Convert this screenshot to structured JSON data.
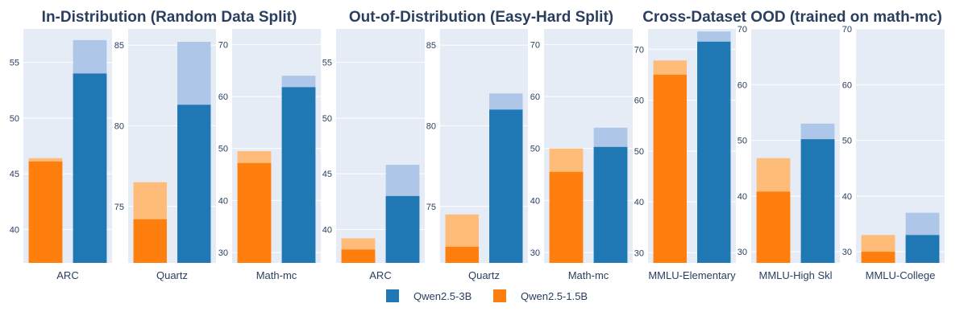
{
  "colors": {
    "qwen3b": "#1f77b4",
    "qwen3b_light": "#aec7e8",
    "qwen15b": "#ff7f0e",
    "qwen15b_light": "#ffbb78",
    "panel_bg": "#e5ecf6",
    "grid": "#ffffff"
  },
  "group_titles": [
    "In-Distribution (Random Data Split)",
    "Out-of-Distribution (Easy-Hard Split)",
    "Cross-Dataset OOD (trained on math-mc)"
  ],
  "legend": {
    "items": [
      {
        "name": "Qwen2.5-3B",
        "color": "#1f77b4"
      },
      {
        "name": "Qwen2.5-1.5B",
        "color": "#ff7f0e"
      }
    ]
  },
  "chart_data": [
    {
      "type": "bar",
      "group": "In-Distribution (Random Data Split)",
      "category": "ARC",
      "ylim": [
        37,
        58
      ],
      "ticks": [
        40,
        45,
        50,
        55
      ],
      "series": [
        {
          "name": "Qwen2.5-1.5B",
          "base": 46.1,
          "improved": 46.4
        },
        {
          "name": "Qwen2.5-3B",
          "base": 54.0,
          "improved": 57.0
        }
      ]
    },
    {
      "type": "bar",
      "group": "In-Distribution (Random Data Split)",
      "category": "Quartz",
      "ylim": [
        71.5,
        86
      ],
      "ticks": [
        75,
        80,
        85
      ],
      "series": [
        {
          "name": "Qwen2.5-1.5B",
          "base": 74.2,
          "improved": 76.5
        },
        {
          "name": "Qwen2.5-3B",
          "base": 81.3,
          "improved": 85.2
        }
      ]
    },
    {
      "type": "bar",
      "group": "In-Distribution (Random Data Split)",
      "category": "Math-mc",
      "ylim": [
        28,
        73
      ],
      "ticks": [
        30,
        40,
        50,
        60,
        70
      ],
      "series": [
        {
          "name": "Qwen2.5-1.5B",
          "base": 47.2,
          "improved": 49.5
        },
        {
          "name": "Qwen2.5-3B",
          "base": 61.8,
          "improved": 64.0
        }
      ]
    },
    {
      "type": "bar",
      "group": "Out-of-Distribution (Easy-Hard Split)",
      "category": "ARC",
      "ylim": [
        37,
        58
      ],
      "ticks": [
        40,
        45,
        50,
        55
      ],
      "series": [
        {
          "name": "Qwen2.5-1.5B",
          "base": 38.2,
          "improved": 39.2
        },
        {
          "name": "Qwen2.5-3B",
          "base": 43.0,
          "improved": 45.8
        }
      ]
    },
    {
      "type": "bar",
      "group": "Out-of-Distribution (Easy-Hard Split)",
      "category": "Quartz",
      "ylim": [
        71.5,
        86
      ],
      "ticks": [
        75,
        80,
        85
      ],
      "series": [
        {
          "name": "Qwen2.5-1.5B",
          "base": 72.5,
          "improved": 74.5
        },
        {
          "name": "Qwen2.5-3B",
          "base": 81.0,
          "improved": 82.0
        }
      ]
    },
    {
      "type": "bar",
      "group": "Out-of-Distribution (Easy-Hard Split)",
      "category": "Math-mc",
      "ylim": [
        28,
        73
      ],
      "ticks": [
        30,
        40,
        50,
        60,
        70
      ],
      "series": [
        {
          "name": "Qwen2.5-1.5B",
          "base": 45.5,
          "improved": 50.0
        },
        {
          "name": "Qwen2.5-3B",
          "base": 50.3,
          "improved": 54.0
        }
      ]
    },
    {
      "type": "bar",
      "group": "Cross-Dataset OOD (trained on math-mc)",
      "category": "MMLU-Elementary",
      "ylim": [
        28,
        74
      ],
      "ticks": [
        30,
        40,
        50,
        60,
        70
      ],
      "series": [
        {
          "name": "Qwen2.5-1.5B",
          "base": 65.0,
          "improved": 67.8
        },
        {
          "name": "Qwen2.5-3B",
          "base": 71.5,
          "improved": 73.5
        }
      ]
    },
    {
      "type": "bar",
      "group": "Cross-Dataset OOD (trained on math-mc)",
      "category": "MMLU-High Skl",
      "ylim": [
        28,
        70
      ],
      "ticks": [
        30,
        40,
        50,
        60,
        70
      ],
      "series": [
        {
          "name": "Qwen2.5-1.5B",
          "base": 40.8,
          "improved": 46.8
        },
        {
          "name": "Qwen2.5-3B",
          "base": 50.2,
          "improved": 53.0
        }
      ]
    },
    {
      "type": "bar",
      "group": "Cross-Dataset OOD (trained on math-mc)",
      "category": "MMLU-College",
      "ylim": [
        28,
        70
      ],
      "ticks": [
        30,
        40,
        50,
        60,
        70
      ],
      "series": [
        {
          "name": "Qwen2.5-1.5B",
          "base": 30.0,
          "improved": 33.0
        },
        {
          "name": "Qwen2.5-3B",
          "base": 33.0,
          "improved": 37.0
        }
      ]
    }
  ]
}
